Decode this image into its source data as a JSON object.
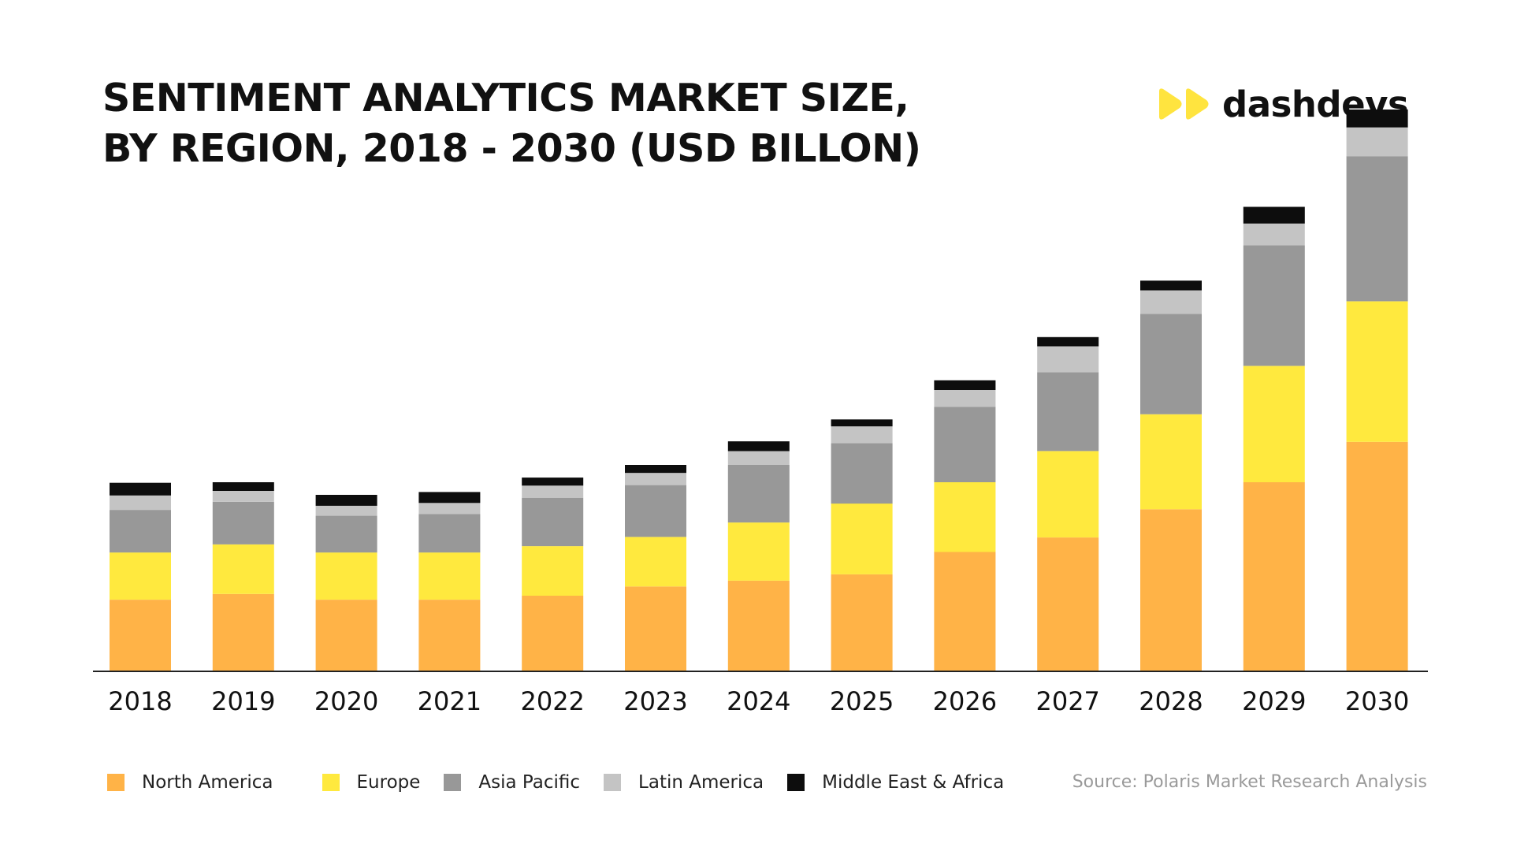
{
  "header": {
    "title_line1": "SENTIMENT ANALYTICS MARKET SIZE,",
    "title_line2": "BY REGION, 2018 - 2030 (USD BILLON)"
  },
  "brand": {
    "name": "dashdevs",
    "icon": "double-play-icon",
    "color": "#FFE43F"
  },
  "source": "Source: Polaris Market Research Analysis",
  "chart_data": {
    "type": "bar",
    "stacked": true,
    "title": "SENTIMENT ANALYTICS MARKET SIZE, BY REGION, 2018 - 2030 (USD BILLON)",
    "xlabel": "",
    "ylabel": "",
    "ylim": [
      0,
      1.0
    ],
    "grid": false,
    "legend_position": "bottom-left",
    "categories": [
      "2018",
      "2019",
      "2020",
      "2021",
      "2022",
      "2023",
      "2024",
      "2025",
      "2026",
      "2027",
      "2028",
      "2029",
      "2030"
    ],
    "series": [
      {
        "name": "North America",
        "color": "#FFB347",
        "values": [
          0.123,
          0.133,
          0.123,
          0.123,
          0.13,
          0.146,
          0.156,
          0.167,
          0.206,
          0.231,
          0.28,
          0.327,
          0.397
        ]
      },
      {
        "name": "Europe",
        "color": "#FFE93E",
        "values": [
          0.082,
          0.086,
          0.082,
          0.082,
          0.086,
          0.086,
          0.101,
          0.123,
          0.121,
          0.15,
          0.165,
          0.202,
          0.244
        ]
      },
      {
        "name": "Asia Pacific",
        "color": "#989898",
        "values": [
          0.074,
          0.074,
          0.064,
          0.067,
          0.084,
          0.09,
          0.1,
          0.105,
          0.131,
          0.137,
          0.174,
          0.209,
          0.252
        ]
      },
      {
        "name": "Latin America",
        "color": "#C4C4C4",
        "values": [
          0.025,
          0.019,
          0.017,
          0.019,
          0.021,
          0.021,
          0.024,
          0.029,
          0.029,
          0.045,
          0.041,
          0.038,
          0.05
        ]
      },
      {
        "name": "Middle East & Africa",
        "color": "#0D0D0D",
        "values": [
          0.022,
          0.015,
          0.019,
          0.019,
          0.014,
          0.014,
          0.017,
          0.012,
          0.017,
          0.016,
          0.017,
          0.029,
          0.031
        ]
      }
    ]
  }
}
